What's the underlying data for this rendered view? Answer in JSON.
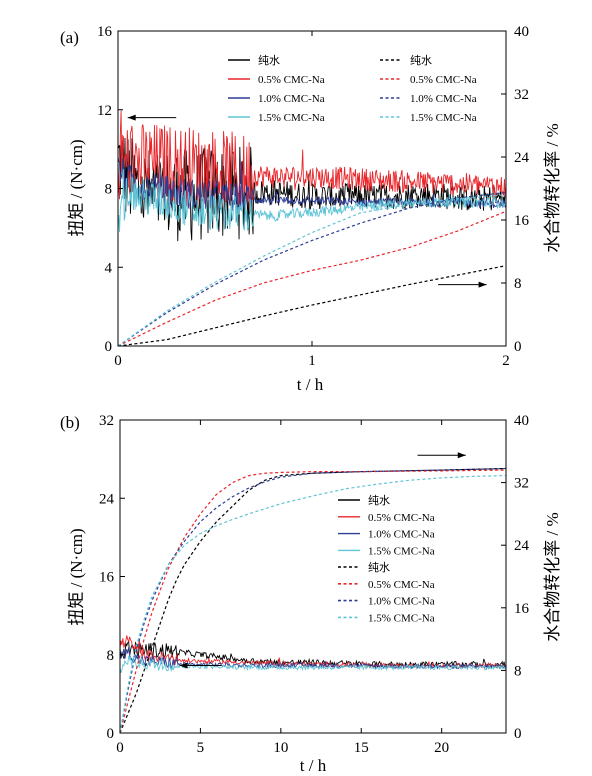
{
  "panel_labels": [
    "(a)",
    "(b)"
  ],
  "chart_data": [
    {
      "type": "line",
      "panel": "(a)",
      "title": "",
      "xlabel": "t / h",
      "ylabel_left": "扭矩 / (N·cm)",
      "ylabel_right": "水合物转化率 / %",
      "xlim": [
        0,
        2
      ],
      "ylim_left": [
        0,
        16
      ],
      "ylim_right": [
        0,
        40
      ],
      "xticks": [
        "0",
        "1",
        "2"
      ],
      "yticks_left": [
        "0",
        "4",
        "8",
        "12",
        "16"
      ],
      "yticks_right": [
        "0",
        "8",
        "16",
        "24",
        "32",
        "40"
      ],
      "legend_torque": [
        "纯水",
        "0.5% CMC-Na",
        "1.0% CMC-Na",
        "1.5% CMC-Na"
      ],
      "legend_conversion": [
        "纯水",
        "0.5% CMC-Na",
        "1.0% CMC-Na",
        "1.5% CMC-Na"
      ],
      "colors": [
        "#000000",
        "#e8262b",
        "#2e3d96",
        "#5fc4d6"
      ],
      "torque_series": [
        {
          "name": "纯水",
          "x": [
            0,
            0.05,
            0.1,
            0.2,
            0.3,
            0.4,
            0.5,
            0.8,
            1.0,
            1.2,
            1.4,
            1.6,
            1.8,
            2.0
          ],
          "y": [
            9.5,
            8.5,
            8.0,
            7.6,
            7.7,
            7.6,
            7.8,
            7.8,
            7.6,
            7.6,
            7.6,
            7.7,
            7.5,
            7.5
          ],
          "noise": 1.5
        },
        {
          "name": "0.5% CMC-Na",
          "x": [
            0,
            0.05,
            0.1,
            0.2,
            0.3,
            0.4,
            0.5,
            0.6,
            0.8,
            1.0,
            1.2,
            1.4,
            1.6,
            1.8,
            2.0
          ],
          "y": [
            9.0,
            9.5,
            9.3,
            9.3,
            9.2,
            9.1,
            9.0,
            8.8,
            8.6,
            8.6,
            8.5,
            8.4,
            8.3,
            8.2,
            8.1
          ],
          "noise": 1.3
        },
        {
          "name": "1.0% CMC-Na",
          "x": [
            0,
            0.05,
            0.1,
            0.2,
            0.3,
            0.4,
            0.5,
            0.8,
            1.0,
            1.2,
            1.4,
            1.6,
            1.8,
            2.0
          ],
          "y": [
            9.0,
            8.5,
            8.2,
            8.0,
            7.8,
            7.7,
            7.6,
            7.4,
            7.4,
            7.3,
            7.3,
            7.3,
            7.3,
            7.2
          ],
          "noise": 0.5
        },
        {
          "name": "1.5% CMC-Na",
          "x": [
            0,
            0.05,
            0.1,
            0.2,
            0.3,
            0.4,
            0.5,
            0.8,
            1.0,
            1.2,
            1.4,
            1.6,
            1.8,
            2.0
          ],
          "y": [
            6.0,
            8.0,
            7.6,
            7.4,
            7.2,
            6.8,
            6.8,
            6.6,
            6.8,
            7.0,
            7.2,
            7.3,
            7.3,
            7.3
          ],
          "noise": 0.6
        }
      ],
      "conversion_series": [
        {
          "name": "纯水",
          "x": [
            0,
            0.25,
            0.5,
            0.75,
            1.0,
            1.25,
            1.5,
            1.75,
            2.0
          ],
          "y": [
            0,
            0.8,
            2.3,
            3.8,
            5.2,
            6.5,
            7.8,
            9.0,
            10.2
          ]
        },
        {
          "name": "0.5% CMC-Na",
          "x": [
            0,
            0.25,
            0.5,
            0.75,
            1.0,
            1.25,
            1.5,
            1.75,
            2.0
          ],
          "y": [
            0,
            3.0,
            5.8,
            8.0,
            9.6,
            10.9,
            12.5,
            14.6,
            17.1
          ]
        },
        {
          "name": "1.0% CMC-Na",
          "x": [
            0,
            0.25,
            0.5,
            0.75,
            1.0,
            1.25,
            1.5,
            1.75,
            2.0
          ],
          "y": [
            0,
            4.2,
            7.8,
            10.9,
            13.4,
            15.6,
            17.5,
            18.8,
            19.5
          ]
        },
        {
          "name": "1.5% CMC-Na",
          "x": [
            0,
            0.25,
            0.5,
            0.75,
            1.0,
            1.25,
            1.5,
            1.75,
            2.0
          ],
          "y": [
            0,
            4.4,
            8.1,
            11.4,
            14.4,
            16.9,
            18.0,
            18.7,
            19.2
          ]
        }
      ],
      "arrows": [
        {
          "dir": "left",
          "x": [
            0.05,
            0.3
          ],
          "y_left": 11.6
        },
        {
          "dir": "right",
          "x": [
            1.65,
            1.9
          ],
          "y_right": 7.8
        }
      ]
    },
    {
      "type": "line",
      "panel": "(b)",
      "title": "",
      "xlabel": "t / h",
      "ylabel_left": "扭矩 / (N·cm)",
      "ylabel_right": "水合物转化率 / %",
      "xlim": [
        0,
        24
      ],
      "ylim_left": [
        0,
        32
      ],
      "ylim_right": [
        0,
        40
      ],
      "xticks": [
        "0",
        "5",
        "10",
        "15",
        "20"
      ],
      "yticks_left": [
        "0",
        "8",
        "16",
        "24",
        "32"
      ],
      "yticks_right": [
        "0",
        "8",
        "16",
        "24",
        "32",
        "40"
      ],
      "legend_torque": [
        "纯水",
        "0.5% CMC-Na",
        "1.0% CMC-Na",
        "1.5% CMC-Na"
      ],
      "legend_conversion": [
        "纯水",
        "0.5% CMC-Na",
        "1.0% CMC-Na",
        "1.5% CMC-Na"
      ],
      "colors": [
        "#000000",
        "#e8262b",
        "#2e3d96",
        "#5fc4d6"
      ],
      "torque_series": [
        {
          "name": "纯水",
          "x": [
            0,
            0.5,
            1,
            2,
            3,
            4,
            5,
            6,
            7,
            8,
            10,
            12,
            14,
            16,
            18,
            20,
            22,
            24
          ],
          "y": [
            8.0,
            8.8,
            8.5,
            8.5,
            8.4,
            8.2,
            8.0,
            7.8,
            7.6,
            7.4,
            7.2,
            7.2,
            7.1,
            7.0,
            7.0,
            7.0,
            7.0,
            7.0
          ],
          "noise": 0.7
        },
        {
          "name": "0.5% CMC-Na",
          "x": [
            0,
            0.5,
            1,
            2,
            3,
            4,
            6,
            8,
            10,
            14,
            18,
            22,
            24
          ],
          "y": [
            9.0,
            9.5,
            8.5,
            7.8,
            7.6,
            7.4,
            7.3,
            7.2,
            7.1,
            7.0,
            6.9,
            6.9,
            6.9
          ],
          "noise": 0.5
        },
        {
          "name": "1.0% CMC-Na",
          "x": [
            0,
            0.5,
            1,
            2,
            3,
            4,
            6,
            8,
            10,
            14,
            18,
            22,
            24
          ],
          "y": [
            7.8,
            8.4,
            7.5,
            7.3,
            7.2,
            7.0,
            7.0,
            6.9,
            6.9,
            6.9,
            6.8,
            6.8,
            6.8
          ],
          "noise": 0.5
        },
        {
          "name": "1.5% CMC-Na",
          "x": [
            0,
            0.5,
            1,
            2,
            3,
            4,
            6,
            8,
            10,
            14,
            18,
            22,
            24
          ],
          "y": [
            6.5,
            7.5,
            7.2,
            7.0,
            6.9,
            6.8,
            6.8,
            6.7,
            6.7,
            6.7,
            6.7,
            6.7,
            6.7
          ],
          "noise": 0.5
        }
      ],
      "conversion_series": [
        {
          "name": "纯水",
          "x": [
            0,
            0.5,
            1,
            1.5,
            2,
            2.5,
            3,
            3.5,
            4,
            5,
            6,
            7,
            8,
            9,
            10,
            12,
            15,
            20,
            24
          ],
          "y": [
            0,
            2.5,
            5.0,
            8.0,
            11.0,
            14.0,
            17.0,
            19.5,
            21.5,
            24.5,
            27.0,
            29.0,
            31.0,
            32.3,
            32.9,
            33.2,
            33.4,
            33.6,
            33.8
          ]
        },
        {
          "name": "0.5% CMC-Na",
          "x": [
            0,
            0.5,
            1,
            1.5,
            2,
            3,
            4,
            5,
            6,
            7,
            8,
            9,
            10,
            12,
            15,
            20,
            24
          ],
          "y": [
            0,
            4.0,
            8.0,
            12.0,
            15.5,
            21.0,
            25.0,
            28.0,
            30.5,
            32.0,
            32.9,
            33.2,
            33.3,
            33.4,
            33.4,
            33.5,
            33.6
          ]
        },
        {
          "name": "1.0% CMC-Na",
          "x": [
            0,
            0.5,
            1,
            1.5,
            2,
            3,
            4,
            5,
            6,
            7,
            8,
            9,
            10,
            12,
            15,
            20,
            24
          ],
          "y": [
            0,
            5.5,
            10.5,
            14.0,
            17.0,
            21.5,
            24.5,
            27.0,
            28.8,
            30.2,
            31.3,
            32.1,
            32.7,
            33.2,
            33.4,
            33.6,
            33.8
          ]
        },
        {
          "name": "1.5% CMC-Na",
          "x": [
            0,
            0.5,
            1,
            1.5,
            2,
            3,
            4,
            5,
            6,
            7,
            8,
            10,
            12,
            14,
            16,
            18,
            20,
            22,
            24
          ],
          "y": [
            0,
            6.0,
            11.0,
            14.5,
            17.5,
            21.5,
            24.0,
            25.5,
            26.5,
            27.3,
            28.0,
            29.3,
            30.3,
            31.2,
            31.8,
            32.3,
            32.6,
            32.8,
            32.9
          ]
        }
      ],
      "arrows": [
        {
          "dir": "right",
          "x": [
            18.5,
            21.5
          ],
          "y_right": 35.5
        },
        {
          "dir": "left",
          "x": [
            3.7,
            6.3
          ],
          "y_left": 6.9
        }
      ]
    }
  ]
}
